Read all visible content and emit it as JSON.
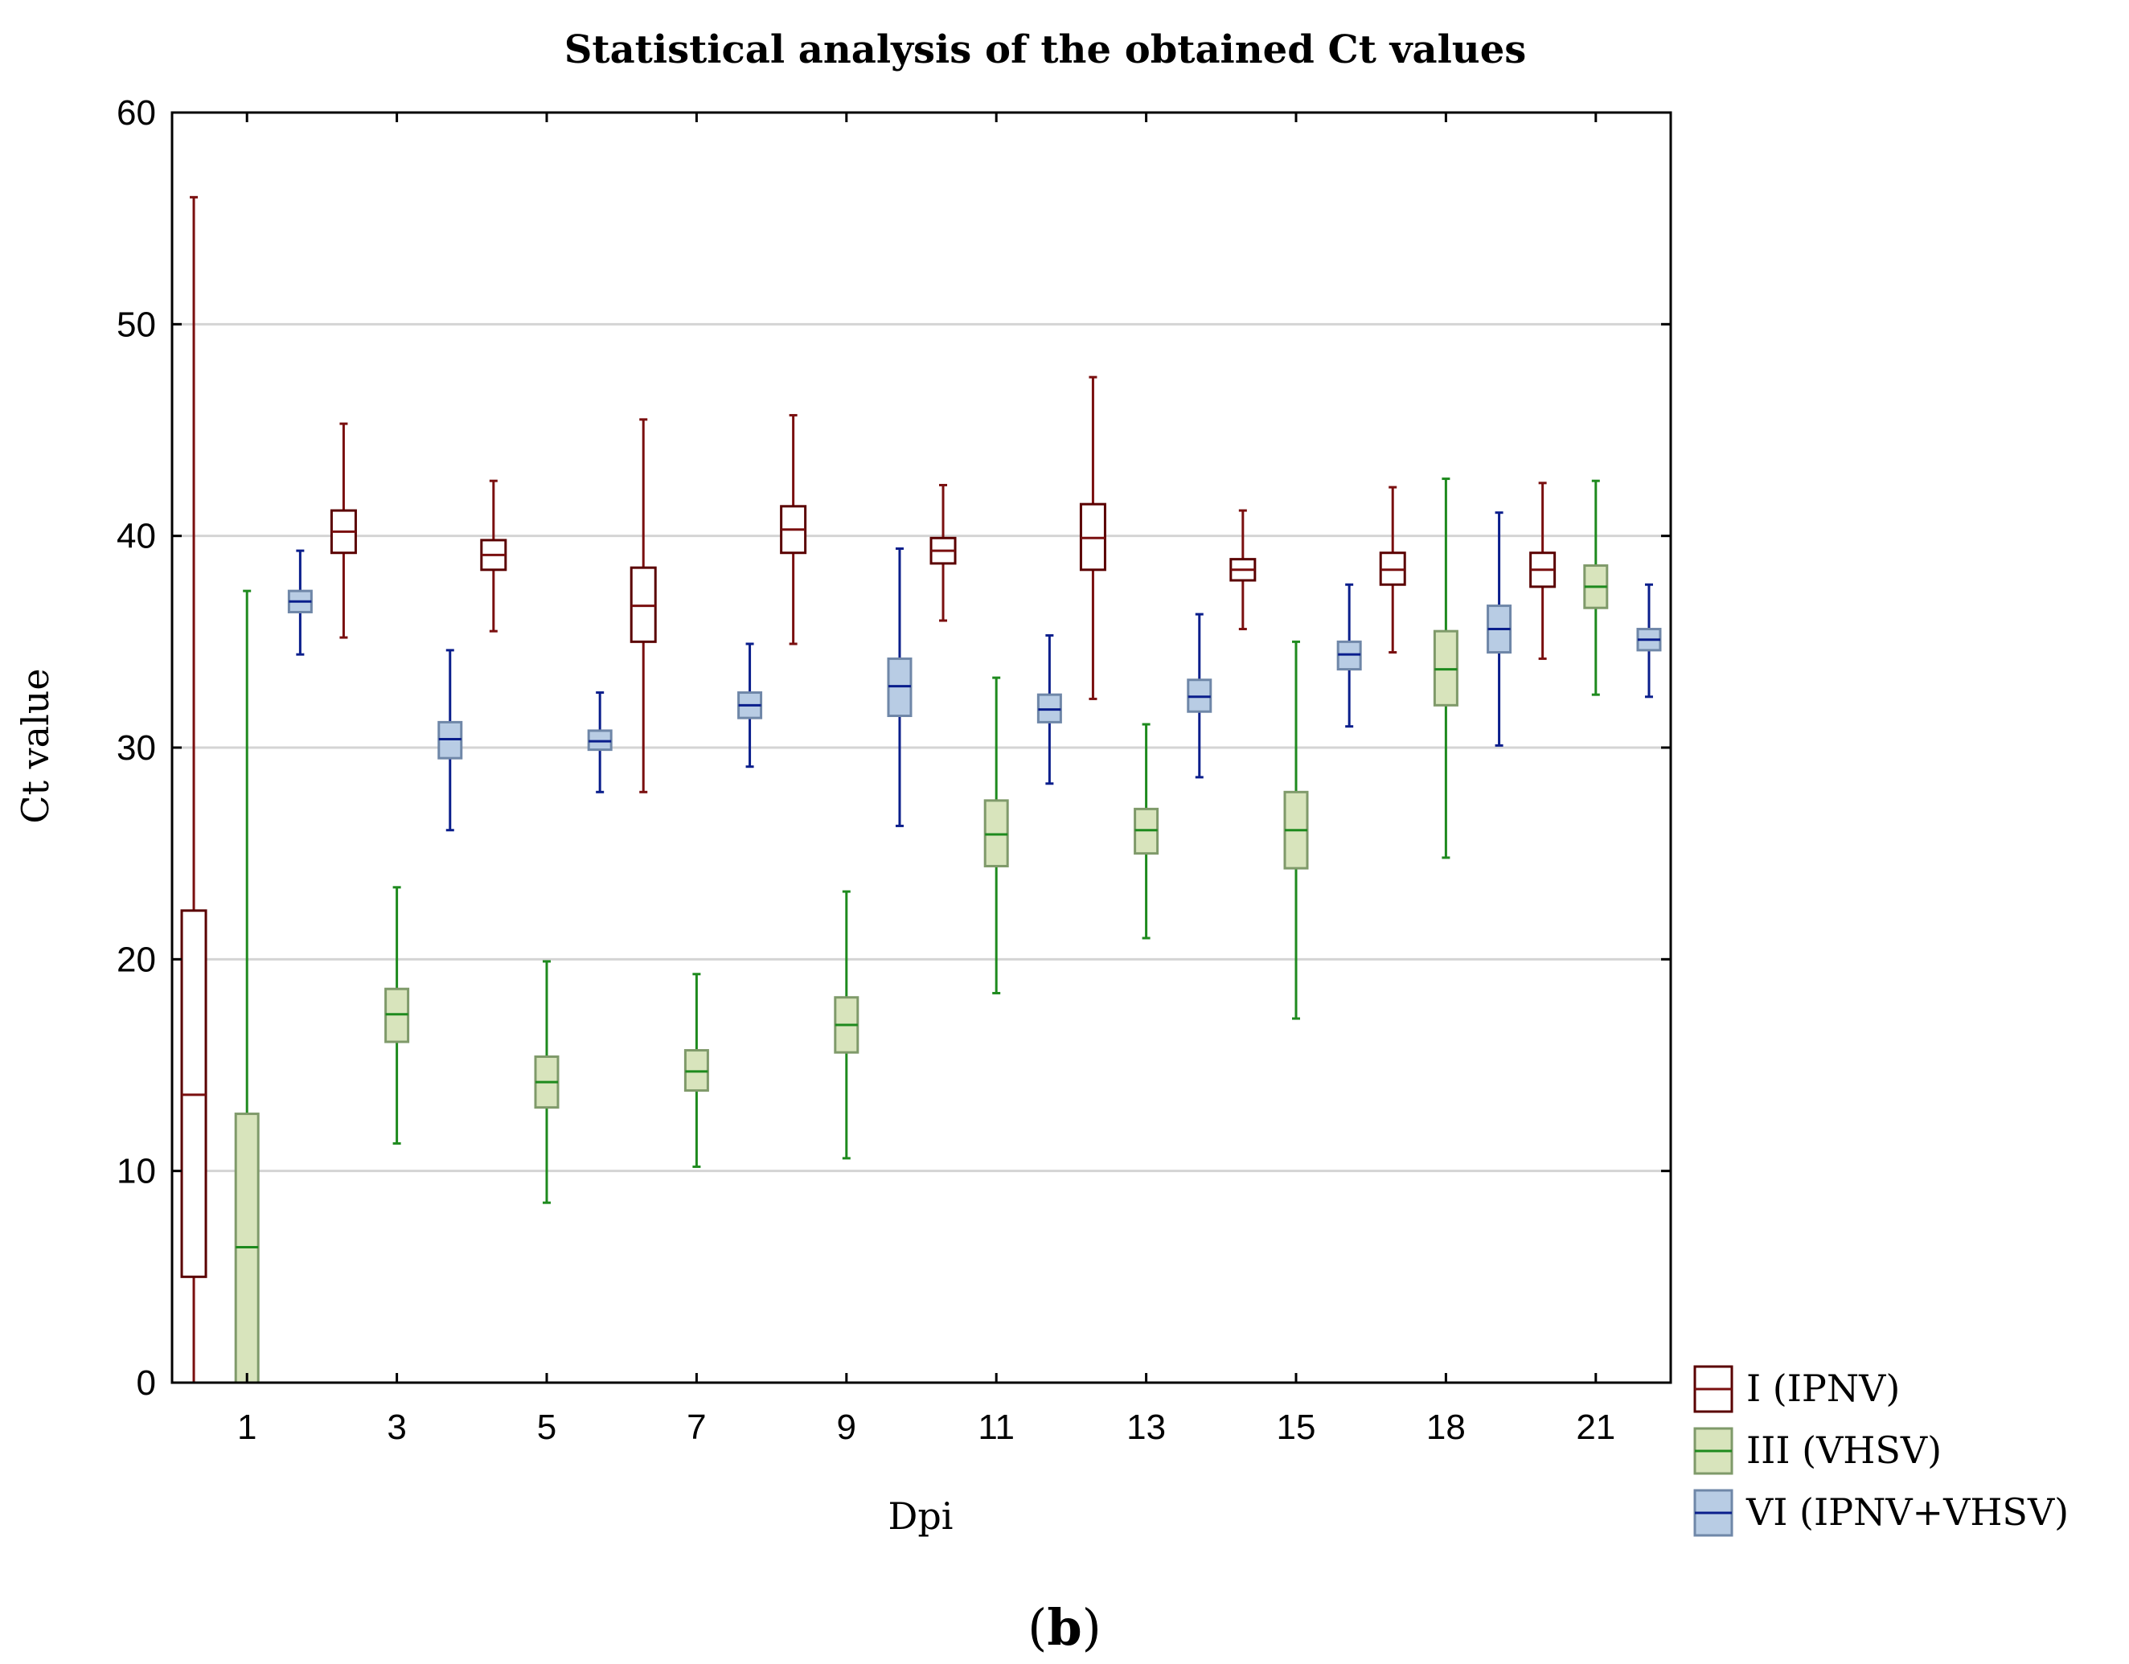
{
  "chart_data": {
    "type": "boxplot",
    "title": "Statistical analysis of the obtained Ct values",
    "xlabel": "Dpi",
    "ylabel": "Ct value",
    "panel_label": "b",
    "ylim": [
      0,
      60
    ],
    "yticks": [
      0,
      10,
      20,
      30,
      40,
      50,
      60
    ],
    "grid": true,
    "legend_position": "outside-bottom-right",
    "categories": [
      "1",
      "3",
      "5",
      "7",
      "9",
      "11",
      "13",
      "15",
      "18",
      "21"
    ],
    "series": [
      {
        "name": "I (IPNV)",
        "color": "#7a0f0f",
        "fill": "#ffffff",
        "edge": "#5a0000",
        "boxes": [
          {
            "min": 0.0,
            "q1": 5.0,
            "median": 13.6,
            "q3": 22.3,
            "max": 56.0
          },
          {
            "min": 35.2,
            "q1": 39.2,
            "median": 40.2,
            "q3": 41.2,
            "max": 45.3
          },
          {
            "min": 35.5,
            "q1": 38.4,
            "median": 39.1,
            "q3": 39.8,
            "max": 42.6
          },
          {
            "min": 27.9,
            "q1": 35.0,
            "median": 36.7,
            "q3": 38.5,
            "max": 45.5
          },
          {
            "min": 34.9,
            "q1": 39.2,
            "median": 40.3,
            "q3": 41.4,
            "max": 45.7
          },
          {
            "min": 36.0,
            "q1": 38.7,
            "median": 39.3,
            "q3": 39.9,
            "max": 42.4
          },
          {
            "min": 32.3,
            "q1": 38.4,
            "median": 39.9,
            "q3": 41.5,
            "max": 47.5
          },
          {
            "min": 35.6,
            "q1": 37.9,
            "median": 38.4,
            "q3": 38.9,
            "max": 41.2
          },
          {
            "min": 34.5,
            "q1": 37.7,
            "median": 38.4,
            "q3": 39.2,
            "max": 42.3
          },
          {
            "min": 34.2,
            "q1": 37.6,
            "median": 38.4,
            "q3": 39.2,
            "max": 42.5
          }
        ]
      },
      {
        "name": "III (VHSV)",
        "color": "#1e8a1e",
        "fill": "#d8e4bc",
        "edge": "#7f9a6a",
        "boxes": [
          {
            "min": 0.0,
            "q1": 0.0,
            "median": 6.4,
            "q3": 12.7,
            "max": 37.4
          },
          {
            "min": 11.3,
            "q1": 16.1,
            "median": 17.4,
            "q3": 18.6,
            "max": 23.4
          },
          {
            "min": 8.5,
            "q1": 13.0,
            "median": 14.2,
            "q3": 15.4,
            "max": 19.9
          },
          {
            "min": 10.2,
            "q1": 13.8,
            "median": 14.7,
            "q3": 15.7,
            "max": 19.3
          },
          {
            "min": 10.6,
            "q1": 15.6,
            "median": 16.9,
            "q3": 18.2,
            "max": 23.2
          },
          {
            "min": 18.4,
            "q1": 24.4,
            "median": 25.9,
            "q3": 27.5,
            "max": 33.3
          },
          {
            "min": 21.0,
            "q1": 25.0,
            "median": 26.1,
            "q3": 27.1,
            "max": 31.1
          },
          {
            "min": 17.2,
            "q1": 24.3,
            "median": 26.1,
            "q3": 27.9,
            "max": 35.0
          },
          {
            "min": 24.8,
            "q1": 32.0,
            "median": 33.7,
            "q3": 35.5,
            "max": 42.7
          },
          {
            "min": 32.5,
            "q1": 36.6,
            "median": 37.6,
            "q3": 38.6,
            "max": 42.6
          }
        ]
      },
      {
        "name": "VI (IPNV+VHSV)",
        "color": "#0a1e8c",
        "fill": "#b8cce4",
        "edge": "#6f87a8",
        "boxes": [
          {
            "min": 34.4,
            "q1": 36.4,
            "median": 36.9,
            "q3": 37.4,
            "max": 39.3
          },
          {
            "min": 26.1,
            "q1": 29.5,
            "median": 30.4,
            "q3": 31.2,
            "max": 34.6
          },
          {
            "min": 27.9,
            "q1": 29.9,
            "median": 30.3,
            "q3": 30.8,
            "max": 32.6
          },
          {
            "min": 29.1,
            "q1": 31.4,
            "median": 32.0,
            "q3": 32.6,
            "max": 34.9
          },
          {
            "min": 26.3,
            "q1": 31.5,
            "median": 32.9,
            "q3": 34.2,
            "max": 39.4
          },
          {
            "min": 28.3,
            "q1": 31.2,
            "median": 31.8,
            "q3": 32.5,
            "max": 35.3
          },
          {
            "min": 28.6,
            "q1": 31.7,
            "median": 32.4,
            "q3": 33.2,
            "max": 36.3
          },
          {
            "min": 31.0,
            "q1": 33.7,
            "median": 34.4,
            "q3": 35.0,
            "max": 37.7
          },
          {
            "min": 30.1,
            "q1": 34.5,
            "median": 35.6,
            "q3": 36.7,
            "max": 41.1
          },
          {
            "min": 32.4,
            "q1": 34.6,
            "median": 35.1,
            "q3": 35.6,
            "max": 37.7
          }
        ]
      }
    ]
  }
}
